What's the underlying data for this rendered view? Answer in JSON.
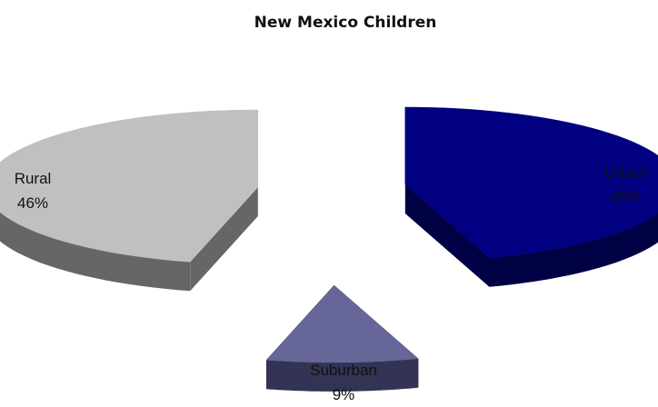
{
  "chart_data": {
    "type": "pie",
    "title": "New Mexico Children",
    "categories": [
      "Urban",
      "Suburban",
      "Rural"
    ],
    "values": [
      45,
      9,
      46
    ],
    "labels": [
      "45%",
      "9%",
      "46%"
    ],
    "colors": {
      "Urban": "#000080",
      "Suburban": "#666699",
      "Rural": "#c0c0c0"
    },
    "side_colors": {
      "Urban": "#000044",
      "Suburban": "#333355",
      "Rural": "#666666"
    },
    "style": "3d-exploded",
    "legend": "none"
  }
}
